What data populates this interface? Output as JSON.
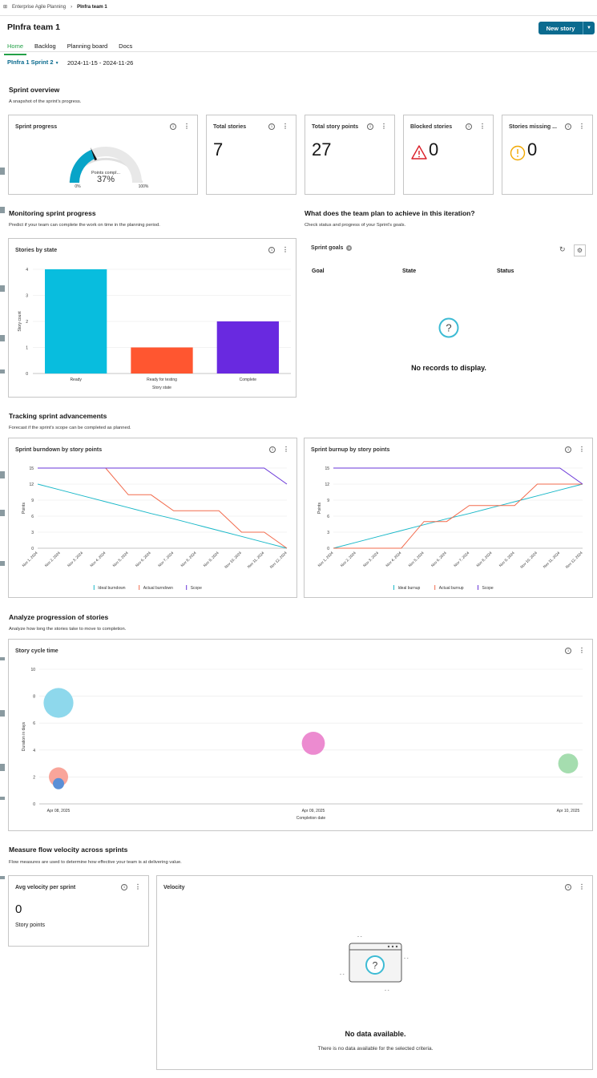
{
  "breadcrumb": {
    "parent": "Enterprise Agile Planning",
    "current": "PInfra team 1"
  },
  "page": {
    "title": "PInfra team 1",
    "new_story": "New story"
  },
  "tabs": [
    "Home",
    "Backlog",
    "Planning board",
    "Docs"
  ],
  "sprint": {
    "name": "PInfra 1 Sprint 2",
    "dates": "2024-11-15 - 2024-11-26"
  },
  "overview": {
    "title": "Sprint overview",
    "subtitle": "A snapshot of the sprint's progress.",
    "progress": {
      "title": "Sprint progress",
      "gauge_label": "Points compl...",
      "percent_label": "37%",
      "value": 0.37,
      "min_label": "0%",
      "max_label": "100%"
    },
    "total_stories": {
      "title": "Total stories",
      "value": "7"
    },
    "total_points": {
      "title": "Total story points",
      "value": "27"
    },
    "blocked": {
      "title": "Blocked stories",
      "value": "0"
    },
    "missing": {
      "title": "Stories missing ...",
      "value": "0"
    }
  },
  "monitoring": {
    "title": "Monitoring sprint progress",
    "subtitle": "Predict if your team can complete the work on time in the planning period."
  },
  "goals_section": {
    "title": "What does the team plan to achieve in this iteration?",
    "subtitle": "Check status and progress of your Sprint's goals."
  },
  "goals": {
    "title": "Sprint goals",
    "count": "0",
    "columns": [
      "Goal",
      "State",
      "Status"
    ],
    "empty": "No records to display."
  },
  "tracking": {
    "title": "Tracking sprint advancements",
    "subtitle": "Forecast if the sprint's scope can be completed as planned."
  },
  "analyze": {
    "title": "Analyze progression of stories",
    "subtitle": "Analyze how long the stories take to move to completion."
  },
  "measure": {
    "title": "Measure flow velocity across sprints",
    "subtitle": "Flow measures are used to determine how effective your team is at delivering value."
  },
  "avg_velocity": {
    "title": "Avg velocity per sprint",
    "value": "0",
    "unit": "Story points"
  },
  "velocity": {
    "title": "Velocity",
    "empty_title": "No data available.",
    "empty_sub": "There is no data available for the selected criteria."
  },
  "chart_data": [
    {
      "id": "stories_by_state",
      "type": "bar",
      "title": "Stories by state",
      "categories": [
        "Ready",
        "Ready for testing",
        "Complete"
      ],
      "values": [
        4,
        1,
        2
      ],
      "colors": [
        "#08bdde",
        "#ff5630",
        "#6929e0"
      ],
      "xlabel": "Story state",
      "ylabel": "Story count",
      "ylim": [
        0,
        4
      ],
      "yticks": [
        0,
        1,
        2,
        3,
        4
      ]
    },
    {
      "id": "burndown",
      "type": "line",
      "title": "Sprint burndown by story points",
      "x": [
        "Nov 1, 2024",
        "Nov 2, 2024",
        "Nov 3, 2024",
        "Nov 4, 2024",
        "Nov 5, 2024",
        "Nov 6, 2024",
        "Nov 7, 2024",
        "Nov 8, 2024",
        "Nov 9, 2024",
        "Nov 10, 2024",
        "Nov 11, 2024",
        "Nov 12, 2024"
      ],
      "ylabel": "Points",
      "ylim": [
        0,
        15
      ],
      "yticks": [
        0,
        3,
        6,
        9,
        12,
        15
      ],
      "series": [
        {
          "name": "Ideal burndown",
          "color": "#1ab8c8",
          "values": [
            12,
            10.9,
            9.8,
            8.7,
            7.6,
            6.5,
            5.5,
            4.4,
            3.3,
            2.2,
            1.1,
            0
          ]
        },
        {
          "name": "Actual burndown",
          "color": "#f26b4d",
          "values": [
            null,
            null,
            null,
            15,
            10,
            10,
            7,
            7,
            7,
            3,
            3,
            0
          ]
        },
        {
          "name": "Scope",
          "color": "#6936d8",
          "values": [
            15,
            15,
            15,
            15,
            15,
            15,
            15,
            15,
            15,
            15,
            15,
            12
          ]
        }
      ]
    },
    {
      "id": "burnup",
      "type": "line",
      "title": "Sprint burnup by story points",
      "x": [
        "Nov 1, 2024",
        "Nov 2, 2024",
        "Nov 3, 2024",
        "Nov 4, 2024",
        "Nov 5, 2024",
        "Nov 6, 2024",
        "Nov 7, 2024",
        "Nov 8, 2024",
        "Nov 9, 2024",
        "Nov 10, 2024",
        "Nov 11, 2024",
        "Nov 12, 2024"
      ],
      "ylabel": "Points",
      "ylim": [
        0,
        15
      ],
      "yticks": [
        0,
        3,
        6,
        9,
        12,
        15
      ],
      "series": [
        {
          "name": "Ideal burnup",
          "color": "#1ab8c8",
          "values": [
            0,
            1.1,
            2.2,
            3.3,
            4.4,
            5.5,
            6.5,
            7.6,
            8.7,
            9.8,
            10.9,
            12
          ]
        },
        {
          "name": "Actual burnup",
          "color": "#f26b4d",
          "values": [
            0,
            0,
            0,
            0,
            5,
            5,
            8,
            8,
            8,
            12,
            12,
            12
          ]
        },
        {
          "name": "Scope",
          "color": "#6936d8",
          "values": [
            15,
            15,
            15,
            15,
            15,
            15,
            15,
            15,
            15,
            15,
            15,
            12
          ]
        }
      ]
    },
    {
      "id": "cycle_time",
      "type": "scatter",
      "title": "Story cycle time",
      "xlabel": "Completion date",
      "ylabel": "Duration in days",
      "ylim": [
        0,
        10
      ],
      "yticks": [
        0,
        2,
        4,
        6,
        8,
        10
      ],
      "xticks": [
        "Apr 08, 2025",
        "Apr 09, 2025",
        "Apr 10, 2025"
      ],
      "xrange": [
        0,
        2
      ],
      "points": [
        {
          "x": 0,
          "y": 7.5,
          "size": 3,
          "color": "#8ed8ec"
        },
        {
          "x": 0,
          "y": 2,
          "size": 1,
          "color": "#f9a59a"
        },
        {
          "x": 0,
          "y": 1.5,
          "size": 0.2,
          "color": "#5b8fd6"
        },
        {
          "x": 1,
          "y": 4.5,
          "size": 1.6,
          "color": "#ec8bd0"
        },
        {
          "x": 2,
          "y": 3,
          "size": 1.1,
          "color": "#a5ddaf"
        }
      ]
    }
  ]
}
